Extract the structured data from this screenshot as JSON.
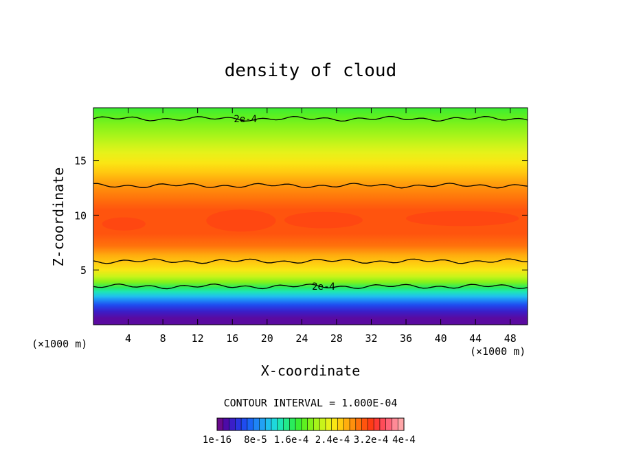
{
  "chart_data": {
    "type": "heatmap",
    "title": "density of cloud",
    "xlabel": "X-coordinate",
    "ylabel": "Z-coordinate",
    "x_unit_left": "(×1000 m)",
    "x_unit_right": "(×1000 m)",
    "xlim": [
      0,
      50
    ],
    "ylim": [
      0,
      19.8
    ],
    "xticks": [
      4,
      8,
      12,
      16,
      20,
      24,
      28,
      32,
      36,
      40,
      44,
      48
    ],
    "yticks": [
      5,
      10,
      15
    ],
    "contour_interval_text": "CONTOUR INTERVAL = 1.000E-04",
    "contours": [
      {
        "label": "2e-4",
        "label_x": 17.5,
        "z": 18.8
      },
      {
        "label": "",
        "z": 12.7
      },
      {
        "label": "",
        "z": 5.8
      },
      {
        "label": "2e-4",
        "label_x": 26.5,
        "z": 3.5
      }
    ],
    "colorbar": {
      "colors": [
        "#6a0a8c",
        "#4d0aa8",
        "#3a1ec8",
        "#2a34e0",
        "#1f4cf0",
        "#1a66f5",
        "#1e84f6",
        "#22a2f4",
        "#20c0ee",
        "#1ed8dc",
        "#1ee6b4",
        "#22ea8a",
        "#2aec5c",
        "#3aee34",
        "#5ef020",
        "#84f21a",
        "#a6f41a",
        "#c8f41a",
        "#e6f21a",
        "#fae614",
        "#ffcc10",
        "#ffae0e",
        "#ff900c",
        "#ff720c",
        "#ff540e",
        "#ff3c14",
        "#ff3a34",
        "#ff4c58",
        "#ff6478",
        "#ff8a96",
        "#ffa6a8"
      ],
      "labels": [
        "1e-16",
        "8e-5",
        "1.6e-4",
        "2.4e-4",
        "3.2e-4",
        "4e-4"
      ]
    },
    "vertical_profile": [
      {
        "z": 0.6,
        "color": "#5a0aa0"
      },
      {
        "z": 1.2,
        "color": "#3a1ec8"
      },
      {
        "z": 1.8,
        "color": "#1f4cf0"
      },
      {
        "z": 2.2,
        "color": "#1e84f6"
      },
      {
        "z": 2.6,
        "color": "#20c0ee"
      },
      {
        "z": 3.0,
        "color": "#1ee6b4"
      },
      {
        "z": 3.4,
        "color": "#2aec5c"
      },
      {
        "z": 3.9,
        "color": "#84f21a"
      },
      {
        "z": 4.4,
        "color": "#c8f41a"
      },
      {
        "z": 5.0,
        "color": "#fae614"
      },
      {
        "z": 5.6,
        "color": "#ffcc10"
      },
      {
        "z": 6.3,
        "color": "#ffae0e"
      },
      {
        "z": 7.2,
        "color": "#ff720c"
      },
      {
        "z": 8.3,
        "color": "#ff540e"
      },
      {
        "z": 10.5,
        "color": "#ff540e"
      },
      {
        "z": 11.5,
        "color": "#ff720c"
      },
      {
        "z": 12.5,
        "color": "#ff900c"
      },
      {
        "z": 13.3,
        "color": "#ffae0e"
      },
      {
        "z": 14.0,
        "color": "#ffcc10"
      },
      {
        "z": 14.8,
        "color": "#fae614"
      },
      {
        "z": 15.7,
        "color": "#e6f21a"
      },
      {
        "z": 16.5,
        "color": "#c8f41a"
      },
      {
        "z": 17.3,
        "color": "#a6f41a"
      },
      {
        "z": 18.2,
        "color": "#84f21a"
      },
      {
        "z": 19.0,
        "color": "#5ef020"
      },
      {
        "z": 19.8,
        "color": "#3aee34"
      }
    ],
    "grid": false
  }
}
